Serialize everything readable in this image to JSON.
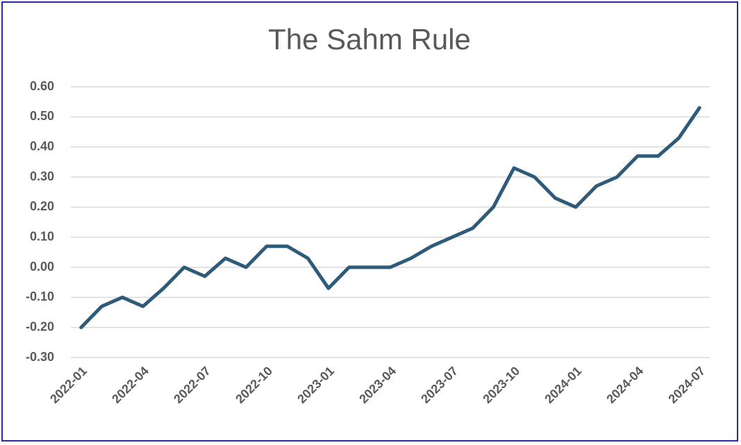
{
  "chart_data": {
    "type": "line",
    "title": "The Sahm Rule",
    "categories": [
      "2022-01",
      null,
      null,
      "2022-04",
      null,
      null,
      "2022-07",
      null,
      null,
      "2022-10",
      null,
      null,
      "2023-01",
      null,
      null,
      "2023-04",
      null,
      null,
      "2023-07",
      null,
      null,
      "2023-10",
      null,
      null,
      "2024-01",
      null,
      null,
      "2024-04",
      null,
      null,
      "2024-07"
    ],
    "values": [
      -0.2,
      -0.13,
      -0.1,
      -0.13,
      -0.07,
      0.0,
      -0.03,
      0.03,
      0.0,
      0.07,
      0.07,
      0.03,
      -0.07,
      0.0,
      0.0,
      0.0,
      0.03,
      0.07,
      0.1,
      0.13,
      0.2,
      0.33,
      0.3,
      0.23,
      0.2,
      0.27,
      0.3,
      0.37,
      0.37,
      0.43,
      0.53
    ],
    "color": "#2f5b7a",
    "ylim": [
      -0.3,
      0.6
    ],
    "yticks": [
      {
        "value": -0.3,
        "label": "-0.30"
      },
      {
        "value": -0.2,
        "label": "-0.20"
      },
      {
        "value": -0.1,
        "label": "-0.10"
      },
      {
        "value": 0,
        "label": "0.00"
      },
      {
        "value": 0.1,
        "label": "0.10"
      },
      {
        "value": 0.2,
        "label": "0.20"
      },
      {
        "value": 0.3,
        "label": "0.30"
      },
      {
        "value": 0.4,
        "label": "0.40"
      },
      {
        "value": 0.5,
        "label": "0.50"
      },
      {
        "value": 0.6,
        "label": "0.60"
      }
    ],
    "grid": true
  }
}
